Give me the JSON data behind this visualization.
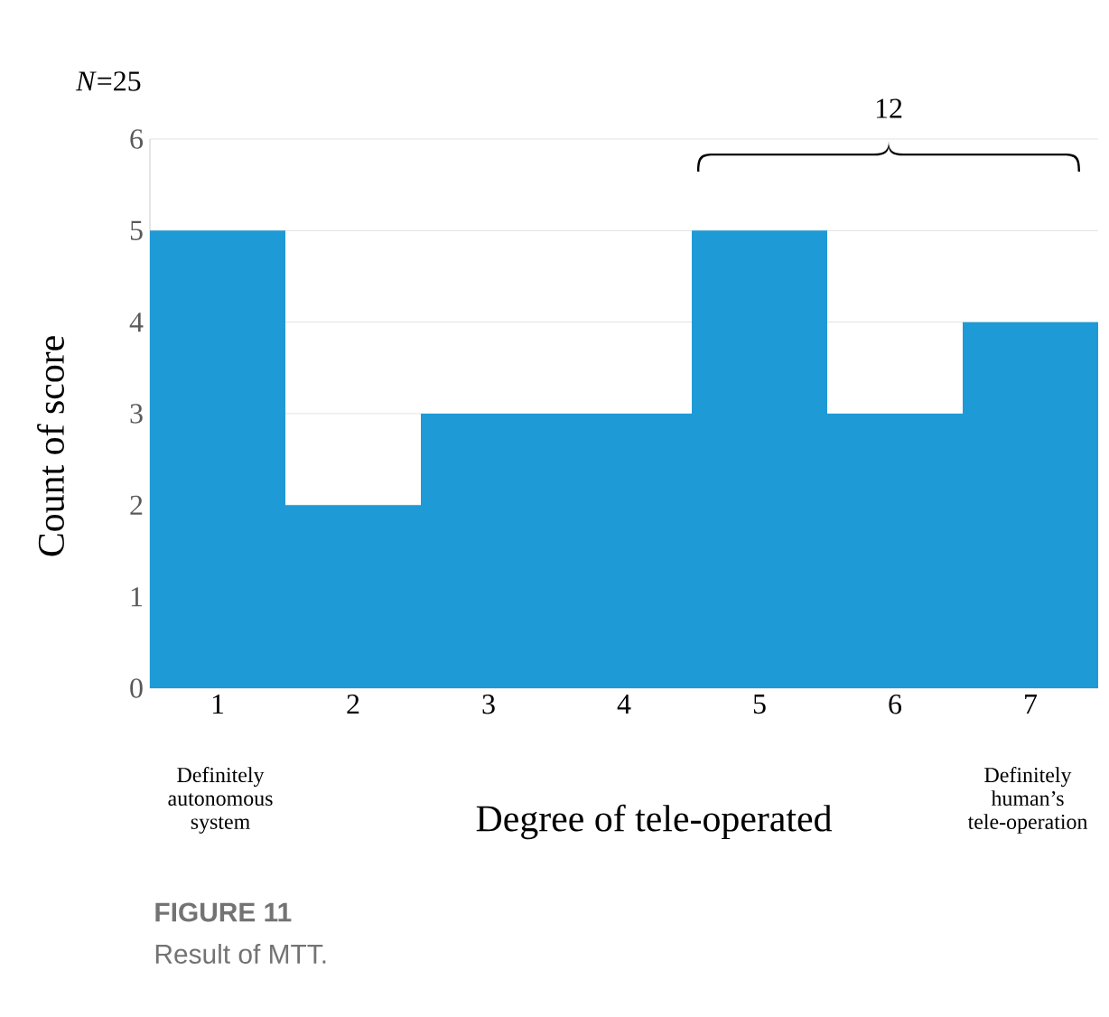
{
  "chart_data": {
    "type": "bar",
    "xlabel": "Degree of tele-operated",
    "ylabel": "Count of score",
    "categories": [
      "1",
      "2",
      "3",
      "4",
      "5",
      "6",
      "7"
    ],
    "values": [
      5,
      2,
      3,
      3,
      5,
      3,
      4
    ],
    "color": "#1e9ad6",
    "ylim": [
      0,
      6
    ],
    "yticks": [
      0,
      1,
      2,
      3,
      4,
      5,
      6
    ],
    "grid": "y",
    "annotations": [
      "*N*=25",
      "12",
      "Definitely autonomous system",
      "Definitely human’s tele-operation",
      "**FIGURE 11**",
      "Result of MTT."
    ]
  }
}
